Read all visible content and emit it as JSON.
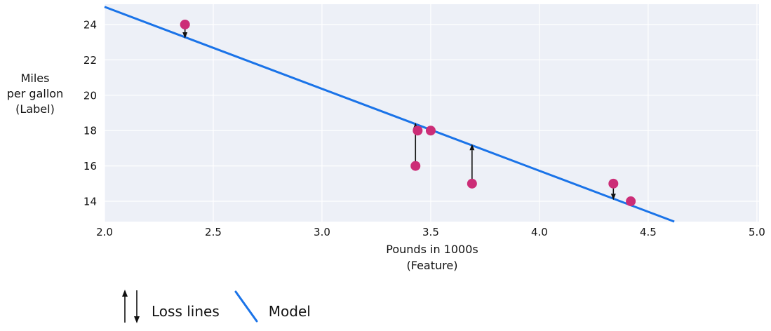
{
  "chart_data": {
    "type": "scatter",
    "title": "",
    "xlabel_lines": [
      "Pounds in 1000s",
      "(Feature)"
    ],
    "ylabel_lines": [
      "Miles",
      "per gallon",
      "(Label)"
    ],
    "x_ticks": [
      2.0,
      2.5,
      3.0,
      3.5,
      4.0,
      4.5,
      5.0
    ],
    "y_ticks": [
      14,
      16,
      18,
      20,
      22,
      24
    ],
    "xlim": [
      2.0,
      5.01
    ],
    "ylim": [
      12.85,
      25.15
    ],
    "grid": true,
    "legend_position": "bottom-left",
    "points": [
      {
        "x": 2.37,
        "y": 24,
        "loss_arrow": true
      },
      {
        "x": 3.44,
        "y": 18,
        "loss_arrow": false
      },
      {
        "x": 3.5,
        "y": 18,
        "loss_arrow": false
      },
      {
        "x": 3.43,
        "y": 16,
        "loss_arrow": true
      },
      {
        "x": 3.69,
        "y": 15,
        "loss_arrow": true
      },
      {
        "x": 4.34,
        "y": 15,
        "loss_arrow": true
      },
      {
        "x": 4.42,
        "y": 14,
        "loss_arrow": true
      }
    ],
    "model_line": {
      "x1": 2.0,
      "y1": 25.0,
      "x2": 4.62,
      "y2": 12.85
    }
  },
  "legend": {
    "loss_label": "Loss lines",
    "model_label": "Model"
  },
  "colors": {
    "plot_bg": "#edf0f7",
    "grid": "#ffffff",
    "model_line": "#1a73e8",
    "point": "#cc2d77",
    "arrow": "#111111",
    "text": "#111111"
  }
}
